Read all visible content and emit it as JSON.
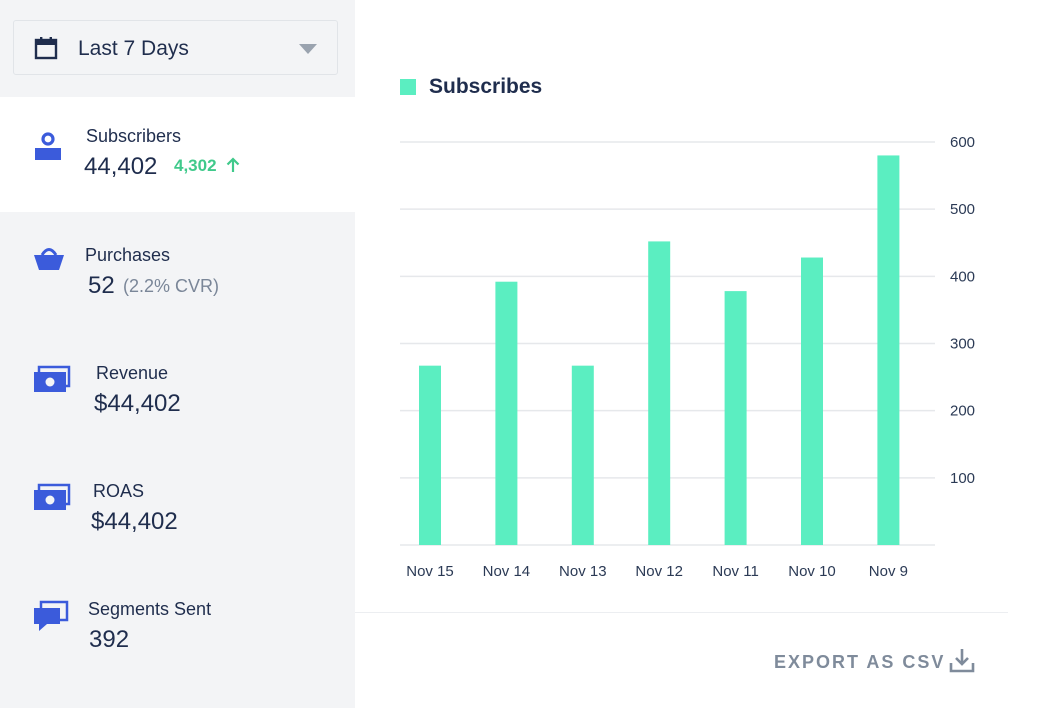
{
  "date_range": {
    "label": "Last 7 Days",
    "icon": "calendar-icon",
    "caret_icon": "caret-down-icon"
  },
  "metrics": [
    {
      "id": "subscribers",
      "label": "Subscribers",
      "value": "44,402",
      "delta": "4,302",
      "delta_icon": "arrow-up-icon",
      "icon": "user-icon",
      "active": true
    },
    {
      "id": "purchases",
      "label": "Purchases",
      "value": "52",
      "sub": "(2.2% CVR)",
      "icon": "basket-icon"
    },
    {
      "id": "revenue",
      "label": "Revenue",
      "value": "$44,402",
      "icon": "cash-icon"
    },
    {
      "id": "roas",
      "label": "ROAS",
      "value": "$44,402",
      "icon": "cash-icon"
    },
    {
      "id": "segments",
      "label": "Segments Sent",
      "value": "392",
      "icon": "chat-icon"
    }
  ],
  "legend": {
    "label": "Subscribes",
    "color": "#5beec1"
  },
  "export": {
    "label": "EXPORT AS CSV",
    "icon": "download-icon"
  },
  "colors": {
    "accent_blue": "#3b5bdb",
    "bar": "#5beec1",
    "delta_green": "#40c98b"
  },
  "chart_data": {
    "type": "bar",
    "title": "",
    "xlabel": "",
    "ylabel": "",
    "categories": [
      "Nov 15",
      "Nov 14",
      "Nov 13",
      "Nov 12",
      "Nov 11",
      "Nov 10",
      "Nov 9"
    ],
    "series": [
      {
        "name": "Subscribes",
        "values": [
          267,
          392,
          267,
          452,
          378,
          428,
          580
        ]
      }
    ],
    "yticks": [
      100,
      200,
      300,
      400,
      500,
      600
    ],
    "ylim": [
      0,
      600
    ],
    "y_axis_position": "right",
    "grid": true,
    "legend_position": "top-left"
  }
}
